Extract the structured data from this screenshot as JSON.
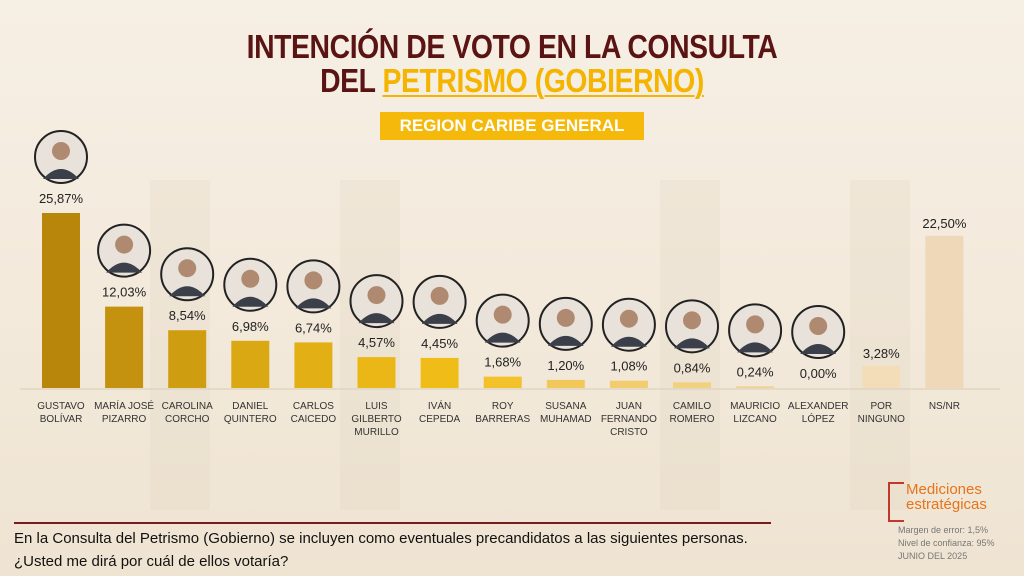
{
  "header": {
    "title_line1": "INTENCIÓN DE VOTO EN LA CONSULTA",
    "title_line2_prefix": "DEL",
    "title_line2_highlight": "PETRISMO (GOBIERNO)",
    "region_label": "REGION CARIBE GENERAL"
  },
  "chart_data": {
    "type": "bar",
    "title": "INTENCIÓN DE VOTO EN LA CONSULTA DEL PETRISMO (GOBIERNO) - REGION CARIBE GENERAL",
    "xlabel": "",
    "ylabel": "",
    "ylim": [
      0,
      27
    ],
    "categories": [
      [
        "GUSTAVO",
        "BOLÍVAR"
      ],
      [
        "MARÍA JOSÉ",
        "PIZARRO"
      ],
      [
        "CAROLINA",
        "CORCHO"
      ],
      [
        "DANIEL",
        "QUINTERO"
      ],
      [
        "CARLOS",
        "CAICEDO"
      ],
      [
        "LUIS",
        "GILBERTO",
        "MURILLO"
      ],
      [
        "IVÁN",
        "CEPEDA"
      ],
      [
        "ROY",
        "BARRERAS"
      ],
      [
        "SUSANA",
        "MUHAMAD"
      ],
      [
        "JUAN",
        "FERNANDO",
        "CRISTO"
      ],
      [
        "CAMILO",
        "ROMERO"
      ],
      [
        "MAURICIO",
        "LIZCANO"
      ],
      [
        "ALEXANDER",
        "LÓPEZ"
      ],
      [
        "POR",
        "NINGUNO"
      ],
      [
        "NS/NR"
      ]
    ],
    "values": [
      25.87,
      12.03,
      8.54,
      6.98,
      6.74,
      4.57,
      4.45,
      1.68,
      1.2,
      1.08,
      0.84,
      0.24,
      0.0,
      3.28,
      22.5
    ],
    "value_labels": [
      "25,87%",
      "12,03%",
      "8,54%",
      "6,98%",
      "6,74%",
      "4,57%",
      "4,45%",
      "1,68%",
      "1,20%",
      "1,08%",
      "0,84%",
      "0,24%",
      "0,00%",
      "3,28%",
      "22,50%"
    ],
    "has_photo": [
      true,
      true,
      true,
      true,
      true,
      true,
      true,
      true,
      true,
      true,
      true,
      true,
      true,
      false,
      false
    ],
    "colors": [
      "#b8860b",
      "#c4920e",
      "#cf9d10",
      "#d9a812",
      "#e2b014",
      "#eab716",
      "#f0bc18",
      "#f3c12a",
      "#f3c85a",
      "#f2cd70",
      "#f1d080",
      "#f0d08c",
      "#efd29a",
      "#f3dcb8",
      "#eed8b8"
    ],
    "grid": false
  },
  "footer": {
    "question": "En la Consulta del Petrismo (Gobierno) se incluyen como eventuales precandidatos a las siguientes personas. ¿Usted me dirá por cuál de ellos votaría?",
    "logo_line1": "Mediciones",
    "logo_line2": "estratégicas",
    "margin": "Margen de error: 1,5%",
    "confidence": "Nivel de confianza: 95%",
    "date": "JUNIO DEL 2025"
  }
}
